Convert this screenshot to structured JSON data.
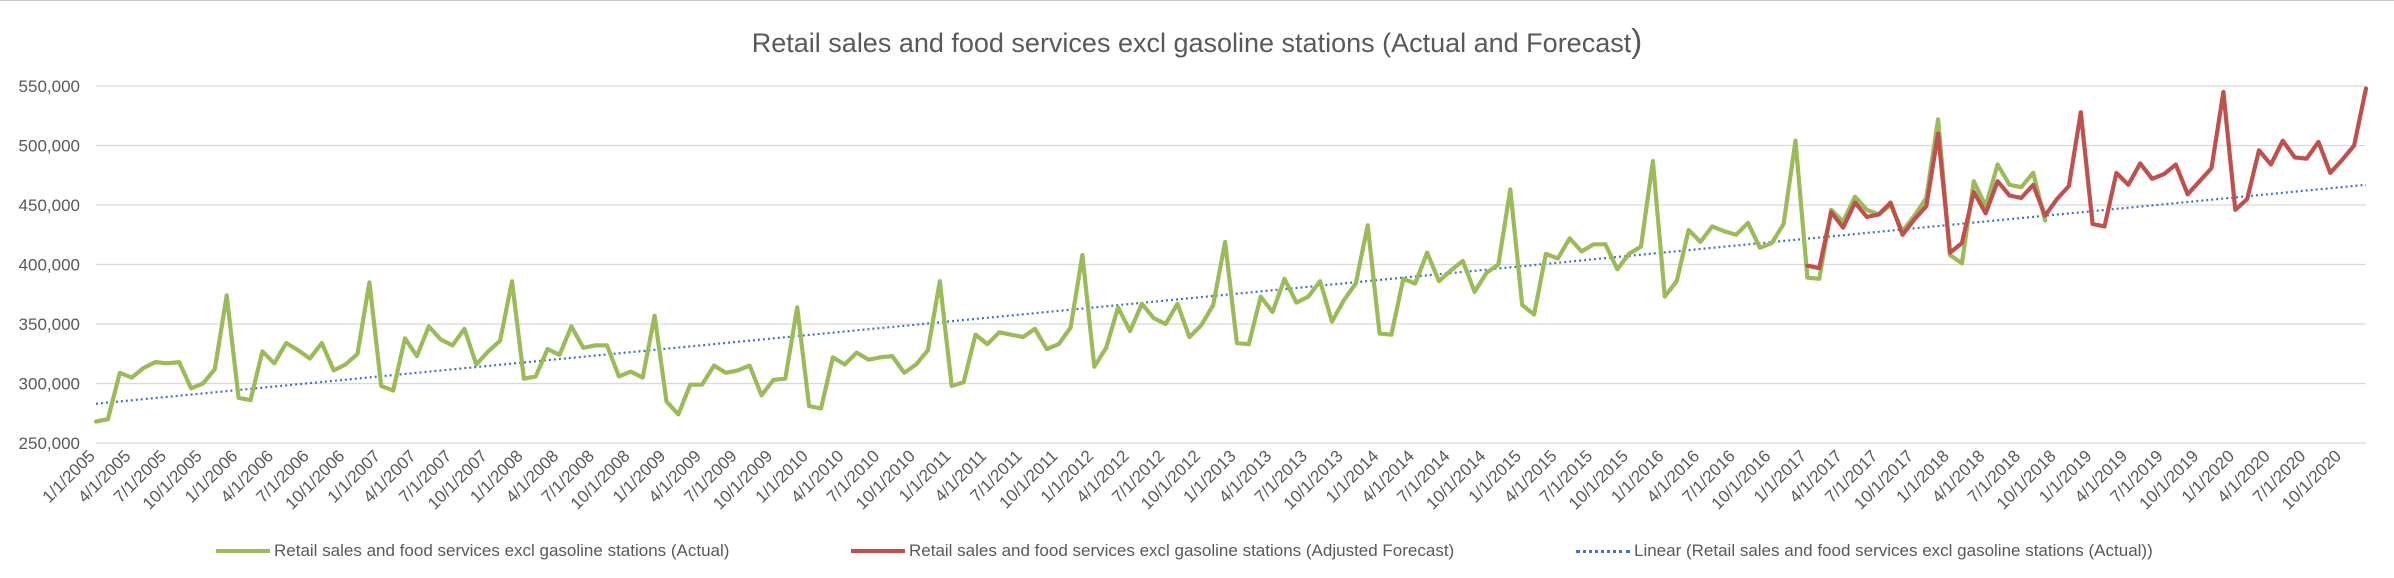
{
  "chart_data": {
    "type": "line",
    "title": "Retail sales and food services excl gasoline stations (Actual and Forecast)",
    "title_main": "Retail sales and food services excl gasoline stations (Actual and Forecast",
    "title_paren": ")",
    "x_start": "2005-01",
    "x_tick_labels": [
      "1/1/2005",
      "4/1/2005",
      "7/1/2005",
      "10/1/2005",
      "1/1/2006",
      "4/1/2006",
      "7/1/2006",
      "10/1/2006",
      "1/1/2007",
      "4/1/2007",
      "7/1/2007",
      "10/1/2007",
      "1/1/2008",
      "4/1/2008",
      "7/1/2008",
      "10/1/2008",
      "1/1/2009",
      "4/1/2009",
      "7/1/2009",
      "10/1/2009",
      "1/1/2010",
      "4/1/2010",
      "7/1/2010",
      "10/1/2010",
      "1/1/2011",
      "4/1/2011",
      "7/1/2011",
      "10/1/2011",
      "1/1/2012",
      "4/1/2012",
      "7/1/2012",
      "10/1/2012",
      "1/1/2013",
      "4/1/2013",
      "7/1/2013",
      "10/1/2013",
      "1/1/2014",
      "4/1/2014",
      "7/1/2014",
      "10/1/2014",
      "1/1/2015",
      "4/1/2015",
      "7/1/2015",
      "10/1/2015",
      "1/1/2016",
      "4/1/2016",
      "7/1/2016",
      "10/1/2016",
      "1/1/2017",
      "4/1/2017",
      "7/1/2017",
      "10/1/2017",
      "1/1/2018",
      "4/1/2018",
      "7/1/2018",
      "10/1/2018",
      "1/1/2019",
      "4/1/2019",
      "7/1/2019",
      "10/1/2019",
      "1/1/2020",
      "4/1/2020",
      "7/1/2020",
      "10/1/2020"
    ],
    "y_ticks": [
      250000,
      300000,
      350000,
      400000,
      450000,
      500000,
      550000
    ],
    "y_tick_labels": [
      "250,000",
      "300,000",
      "350,000",
      "400,000",
      "450,000",
      "500,000",
      "550,000"
    ],
    "ylim": [
      250000,
      550000
    ],
    "grid": true,
    "legend_position": "bottom",
    "series": [
      {
        "name": "Retail sales and food services excl gasoline stations (Actual)",
        "color": "#9bbb59",
        "start_index": 0,
        "values": [
          268000,
          270000,
          309000,
          305000,
          313000,
          318000,
          317000,
          318000,
          296000,
          300000,
          312000,
          374000,
          288000,
          286000,
          327000,
          317000,
          334000,
          328000,
          321000,
          334000,
          311000,
          316000,
          325000,
          385000,
          298000,
          294000,
          338000,
          323000,
          348000,
          337000,
          332000,
          346000,
          316000,
          327000,
          336000,
          386000,
          304000,
          306000,
          329000,
          324000,
          348000,
          330000,
          332000,
          332000,
          306000,
          310000,
          305000,
          357000,
          285000,
          274000,
          299000,
          299000,
          315000,
          309000,
          311000,
          315000,
          290000,
          303000,
          304000,
          364000,
          281000,
          279000,
          322000,
          316000,
          326000,
          320000,
          322000,
          323000,
          309000,
          316000,
          328000,
          386000,
          298000,
          301000,
          341000,
          333000,
          343000,
          341000,
          339000,
          346000,
          329000,
          333000,
          347000,
          408000,
          314000,
          330000,
          364000,
          344000,
          367000,
          355000,
          350000,
          367000,
          339000,
          349000,
          366000,
          419000,
          334000,
          333000,
          373000,
          360000,
          388000,
          368000,
          373000,
          386000,
          352000,
          370000,
          384000,
          433000,
          342000,
          341000,
          388000,
          384000,
          410000,
          386000,
          395000,
          403000,
          377000,
          393000,
          400000,
          463000,
          366000,
          358000,
          409000,
          405000,
          422000,
          411000,
          417000,
          417000,
          396000,
          409000,
          415000,
          487000,
          373000,
          386000,
          429000,
          419000,
          432000,
          428000,
          425000,
          435000,
          414000,
          418000,
          434000,
          504000,
          389000,
          388000,
          446000,
          436000,
          457000,
          446000,
          442000,
          450000,
          428000,
          441000,
          456000,
          522000,
          408000,
          401000,
          470000,
          449000,
          484000,
          467000,
          465000,
          477000,
          437000
        ]
      },
      {
        "name": "Retail sales and food services excl gasoline stations (Adjusted Forecast)",
        "color": "#c0504d",
        "start_index": 144,
        "values": [
          399000,
          397000,
          444000,
          431000,
          452000,
          440000,
          442000,
          452000,
          425000,
          438000,
          449000,
          510000,
          410000,
          418000,
          461000,
          443000,
          470000,
          458000,
          456000,
          467000,
          441000,
          455000,
          466000,
          528000,
          434000,
          432000,
          477000,
          467000,
          485000,
          472000,
          476000,
          484000,
          459000,
          470000,
          481000,
          545000,
          446000,
          455000,
          496000,
          484000,
          504000,
          490000,
          489000,
          503000,
          477000,
          488000,
          500000,
          548000
        ]
      }
    ],
    "trendline": {
      "name": "Linear (Retail sales and food services excl gasoline stations (Actual))",
      "color": "#4472c4",
      "style": "dotted",
      "start": {
        "x": "1/1/2005",
        "y": 283000
      },
      "end": {
        "x": "12/1/2020",
        "y": 467000
      }
    }
  }
}
